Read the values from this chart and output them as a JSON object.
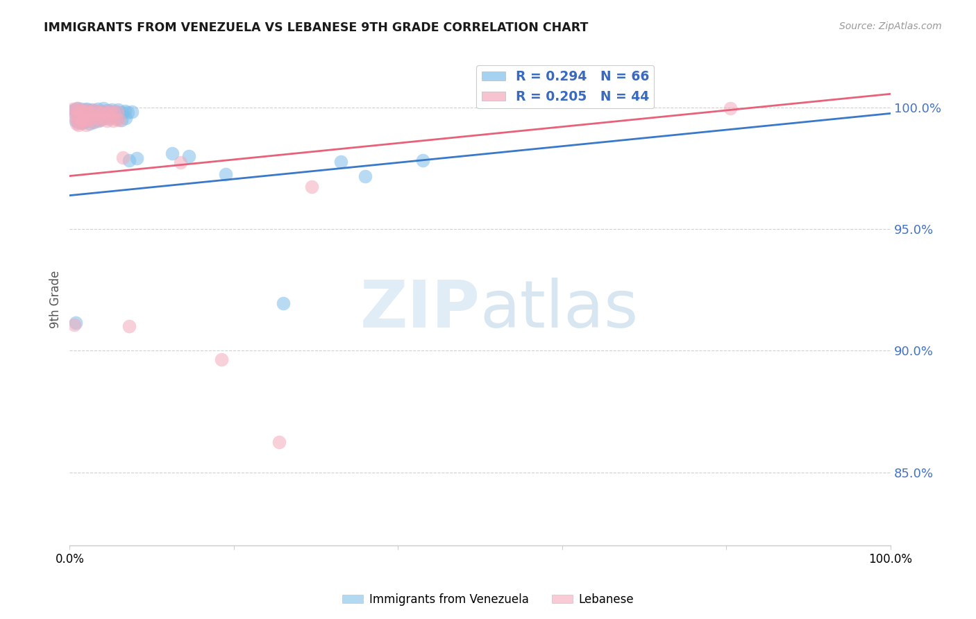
{
  "title": "IMMIGRANTS FROM VENEZUELA VS LEBANESE 9TH GRADE CORRELATION CHART",
  "source": "Source: ZipAtlas.com",
  "ylabel": "9th Grade",
  "y_ticks": [
    0.85,
    0.9,
    0.95,
    1.0
  ],
  "y_tick_labels": [
    "85.0%",
    "90.0%",
    "95.0%",
    "100.0%"
  ],
  "x_range": [
    0.0,
    1.0
  ],
  "y_range": [
    0.82,
    1.022
  ],
  "legend_r1": "R = 0.294",
  "legend_n1": "N = 66",
  "legend_r2": "R = 0.205",
  "legend_n2": "N = 44",
  "blue_color": "#7fbfea",
  "pink_color": "#f4aabc",
  "blue_line_color": "#3a78c9",
  "pink_line_color": "#e8617a",
  "watermark_zip": "ZIP",
  "watermark_atlas": "atlas",
  "scatter_blue": [
    [
      0.003,
      0.9985
    ],
    [
      0.006,
      0.999
    ],
    [
      0.009,
      0.9995
    ],
    [
      0.011,
      0.9988
    ],
    [
      0.014,
      0.9992
    ],
    [
      0.016,
      0.9985
    ],
    [
      0.019,
      0.999
    ],
    [
      0.021,
      0.9993
    ],
    [
      0.024,
      0.9988
    ],
    [
      0.027,
      0.9991
    ],
    [
      0.029,
      0.998
    ],
    [
      0.031,
      0.9986
    ],
    [
      0.034,
      0.9992
    ],
    [
      0.036,
      0.9978
    ],
    [
      0.039,
      0.9983
    ],
    [
      0.041,
      0.9995
    ],
    [
      0.044,
      0.9979
    ],
    [
      0.046,
      0.9987
    ],
    [
      0.049,
      0.9981
    ],
    [
      0.051,
      0.9989
    ],
    [
      0.054,
      0.9977
    ],
    [
      0.057,
      0.9983
    ],
    [
      0.059,
      0.9991
    ],
    [
      0.061,
      0.9975
    ],
    [
      0.064,
      0.9978
    ],
    [
      0.067,
      0.9984
    ],
    [
      0.071,
      0.9979
    ],
    [
      0.076,
      0.9982
    ],
    [
      0.022,
      0.9975
    ],
    [
      0.026,
      0.9981
    ],
    [
      0.032,
      0.9972
    ],
    [
      0.037,
      0.9977
    ],
    [
      0.042,
      0.9981
    ],
    [
      0.047,
      0.997
    ],
    [
      0.052,
      0.9979
    ],
    [
      0.056,
      0.9974
    ],
    [
      0.012,
      0.9968
    ],
    [
      0.017,
      0.9961
    ],
    [
      0.023,
      0.9955
    ],
    [
      0.028,
      0.9963
    ],
    [
      0.033,
      0.9958
    ],
    [
      0.038,
      0.9951
    ],
    [
      0.043,
      0.9959
    ],
    [
      0.048,
      0.9953
    ],
    [
      0.053,
      0.9962
    ],
    [
      0.058,
      0.9956
    ],
    [
      0.063,
      0.9949
    ],
    [
      0.068,
      0.9957
    ],
    [
      0.007,
      0.9945
    ],
    [
      0.01,
      0.9938
    ],
    [
      0.013,
      0.9942
    ],
    [
      0.015,
      0.9935
    ],
    [
      0.018,
      0.9941
    ],
    [
      0.024,
      0.9933
    ],
    [
      0.029,
      0.9939
    ],
    [
      0.035,
      0.9945
    ],
    [
      0.072,
      0.9782
    ],
    [
      0.082,
      0.9791
    ],
    [
      0.125,
      0.981
    ],
    [
      0.145,
      0.9798
    ],
    [
      0.19,
      0.9725
    ],
    [
      0.33,
      0.9778
    ],
    [
      0.36,
      0.9718
    ],
    [
      0.43,
      0.9782
    ],
    [
      0.007,
      0.9115
    ],
    [
      0.26,
      0.9195
    ]
  ],
  "scatter_pink": [
    [
      0.004,
      0.9993
    ],
    [
      0.007,
      0.999
    ],
    [
      0.01,
      0.9995
    ],
    [
      0.013,
      0.9988
    ],
    [
      0.016,
      0.9984
    ],
    [
      0.019,
      0.9991
    ],
    [
      0.022,
      0.9986
    ],
    [
      0.026,
      0.9982
    ],
    [
      0.03,
      0.9989
    ],
    [
      0.034,
      0.9981
    ],
    [
      0.038,
      0.9977
    ],
    [
      0.042,
      0.9984
    ],
    [
      0.046,
      0.9979
    ],
    [
      0.05,
      0.9985
    ],
    [
      0.054,
      0.9978
    ],
    [
      0.058,
      0.9981
    ],
    [
      0.006,
      0.9963
    ],
    [
      0.009,
      0.9958
    ],
    [
      0.012,
      0.9952
    ],
    [
      0.015,
      0.9945
    ],
    [
      0.018,
      0.9953
    ],
    [
      0.021,
      0.9947
    ],
    [
      0.025,
      0.9951
    ],
    [
      0.029,
      0.9943
    ],
    [
      0.033,
      0.9956
    ],
    [
      0.037,
      0.9948
    ],
    [
      0.041,
      0.9954
    ],
    [
      0.045,
      0.9946
    ],
    [
      0.049,
      0.9958
    ],
    [
      0.053,
      0.9944
    ],
    [
      0.057,
      0.9951
    ],
    [
      0.061,
      0.9947
    ],
    [
      0.008,
      0.9932
    ],
    [
      0.011,
      0.9928
    ],
    [
      0.014,
      0.9935
    ],
    [
      0.02,
      0.9929
    ],
    [
      0.065,
      0.9795
    ],
    [
      0.135,
      0.9775
    ],
    [
      0.295,
      0.9675
    ],
    [
      0.006,
      0.9108
    ],
    [
      0.072,
      0.9102
    ],
    [
      0.185,
      0.8965
    ],
    [
      0.255,
      0.8625
    ],
    [
      0.805,
      0.9995
    ]
  ],
  "blue_trendline_x": [
    0.0,
    1.0
  ],
  "blue_trendline_y": [
    0.9638,
    0.9975
  ],
  "pink_trendline_x": [
    0.0,
    1.0
  ],
  "pink_trendline_y": [
    0.9718,
    1.0055
  ]
}
